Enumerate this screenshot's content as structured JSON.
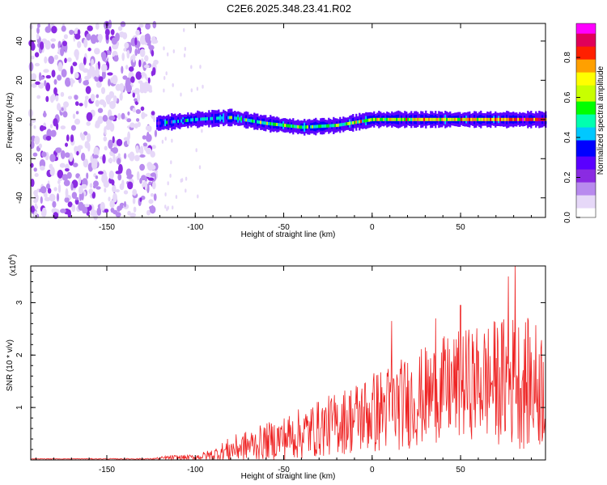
{
  "title": "C2E6.2025.348.23.41.R02",
  "colors": {
    "axis": "#000000",
    "snr_line": "#ee2222",
    "colormap": [
      "#ffffff",
      "#e6d8f8",
      "#b88aee",
      "#8a2be2",
      "#5a00ff",
      "#0000ff",
      "#00c8ff",
      "#00ffb0",
      "#00ff00",
      "#c8ff00",
      "#ffff00",
      "#ffa000",
      "#ff2000",
      "#e0005a",
      "#ff00ff"
    ]
  },
  "chart_data": [
    {
      "type": "heatmap",
      "name": "spectrogram",
      "xlabel": "Height of straight line (km)",
      "ylabel": "Frequency (Hz)",
      "xlim": [
        -193,
        98
      ],
      "ylim": [
        -50,
        49
      ],
      "xticks": [
        -150,
        -100,
        -50,
        0,
        50
      ],
      "yticks": [
        -40,
        -20,
        0,
        20,
        40
      ],
      "ridge_track_hz": [
        {
          "x": -122,
          "y": -2
        },
        {
          "x": -100,
          "y": 0
        },
        {
          "x": -80,
          "y": 1
        },
        {
          "x": -60,
          "y": -2
        },
        {
          "x": -40,
          "y": -4
        },
        {
          "x": -20,
          "y": -3
        },
        {
          "x": 0,
          "y": 0
        },
        {
          "x": 25,
          "y": 0
        },
        {
          "x": 50,
          "y": 0
        },
        {
          "x": 75,
          "y": 0
        },
        {
          "x": 98,
          "y": 0
        }
      ],
      "noise_region_x": [
        -193,
        -122
      ],
      "colorbar": {
        "label": "Normalized spectral amplitude",
        "range": [
          0,
          0.97
        ],
        "ticks": [
          0.0,
          0.2,
          0.4,
          0.6,
          0.8
        ]
      }
    },
    {
      "type": "line",
      "name": "snr",
      "xlabel": "Height of straight line (km)",
      "ylabel": "SNR (10 * v/v)",
      "y_multiplier": "(x10",
      "y_multiplier_exp": "4",
      "xlim": [
        -193,
        98
      ],
      "ylim": [
        0,
        3.7
      ],
      "xticks": [
        -150,
        -100,
        -50,
        0,
        50
      ],
      "yticks": [
        1,
        2,
        3
      ],
      "envelope": [
        {
          "x": -193,
          "mean": 0.02,
          "amp": 0.005
        },
        {
          "x": -125,
          "mean": 0.02,
          "amp": 0.01
        },
        {
          "x": -115,
          "mean": 0.04,
          "amp": 0.05
        },
        {
          "x": -100,
          "mean": 0.05,
          "amp": 0.05
        },
        {
          "x": -90,
          "mean": 0.1,
          "amp": 0.12
        },
        {
          "x": -80,
          "mean": 0.2,
          "amp": 0.25
        },
        {
          "x": -60,
          "mean": 0.35,
          "amp": 0.35
        },
        {
          "x": -40,
          "mean": 0.5,
          "amp": 0.5
        },
        {
          "x": -20,
          "mean": 0.7,
          "amp": 0.6
        },
        {
          "x": 0,
          "mean": 0.9,
          "amp": 0.8
        },
        {
          "x": 20,
          "mean": 1.1,
          "amp": 0.9
        },
        {
          "x": 40,
          "mean": 1.35,
          "amp": 1.0
        },
        {
          "x": 60,
          "mean": 1.5,
          "amp": 1.1
        },
        {
          "x": 80,
          "mean": 1.5,
          "amp": 1.3
        },
        {
          "x": 98,
          "mean": 1.4,
          "amp": 1.2
        }
      ],
      "peaks": [
        {
          "x": 77,
          "y": 3.5
        },
        {
          "x": 81,
          "y": 3.7
        },
        {
          "x": 50,
          "y": 2.95
        },
        {
          "x": 36,
          "y": 2.7
        },
        {
          "x": 11,
          "y": 2.65
        }
      ]
    }
  ]
}
